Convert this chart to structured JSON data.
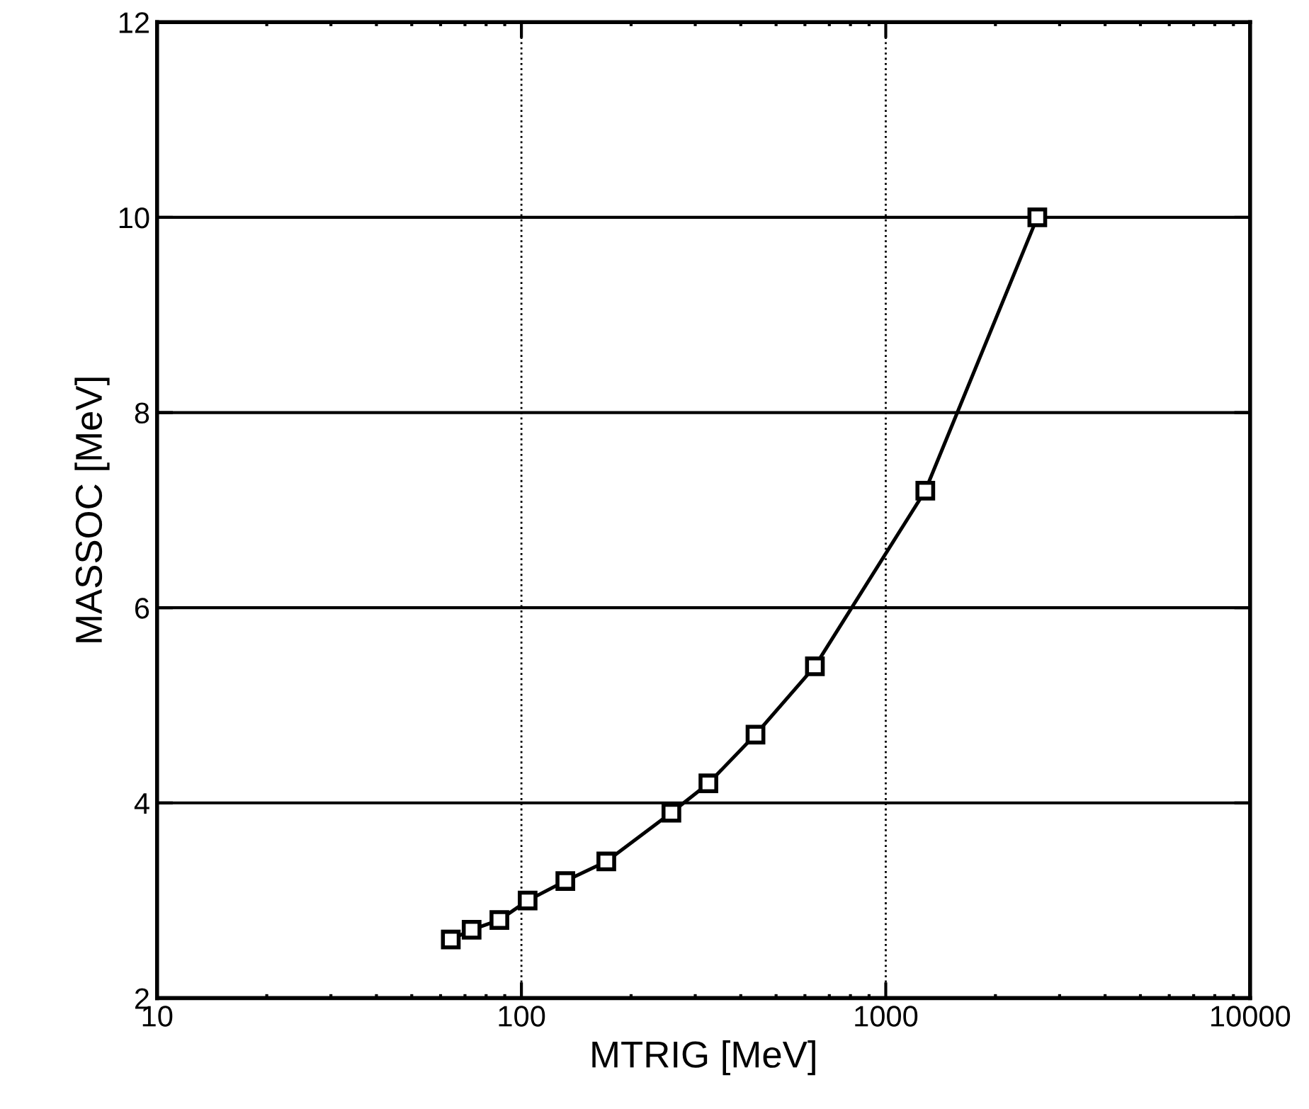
{
  "chart_data": {
    "type": "line",
    "xlabel": "MTRIG [MeV]",
    "ylabel": "MASSOC [MeV]",
    "log": "x",
    "grid": true,
    "marker": "square",
    "line_style": "solid",
    "x": [
      64,
      73,
      87,
      104,
      132,
      171,
      258,
      326,
      439,
      639,
      1284,
      2606
    ],
    "series": [
      {
        "color": "#000000",
        "values": [
          2.6,
          2.7,
          2.8,
          3.0,
          3.2,
          3.4,
          3.9,
          4.2,
          4.7,
          5.4,
          7.2,
          10.0
        ]
      }
    ],
    "xlim": [
      10,
      10000
    ],
    "xticks": [
      10,
      100,
      1000,
      10000
    ],
    "ylim": [
      2,
      12
    ],
    "yticks": [
      2,
      4,
      6,
      8,
      10,
      12
    ]
  }
}
